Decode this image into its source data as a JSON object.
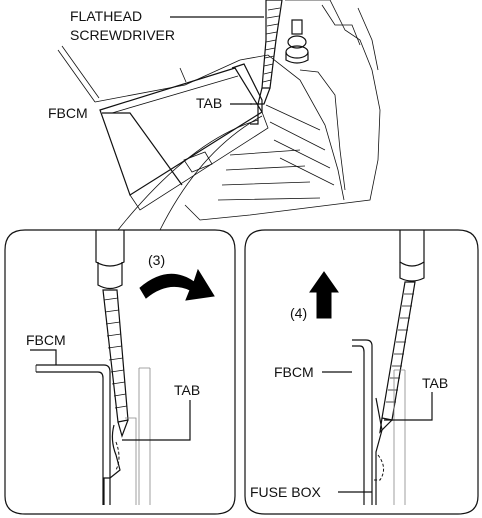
{
  "top_view": {
    "flathead_label_line1": "FLATHEAD",
    "flathead_label_line2": "SCREWDRIVER",
    "fbcm_label": "FBCM",
    "tab_label": "TAB"
  },
  "left_detail": {
    "step_label": "(3)",
    "fbcm_label": "FBCM",
    "tab_label": "TAB"
  },
  "right_detail": {
    "step_label": "(4)",
    "fbcm_label": "FBCM",
    "tab_label": "TAB",
    "fuse_box_label": "FUSE BOX"
  },
  "colors": {
    "line": "#111111",
    "arrow_fill": "#000000",
    "background": "#ffffff"
  }
}
